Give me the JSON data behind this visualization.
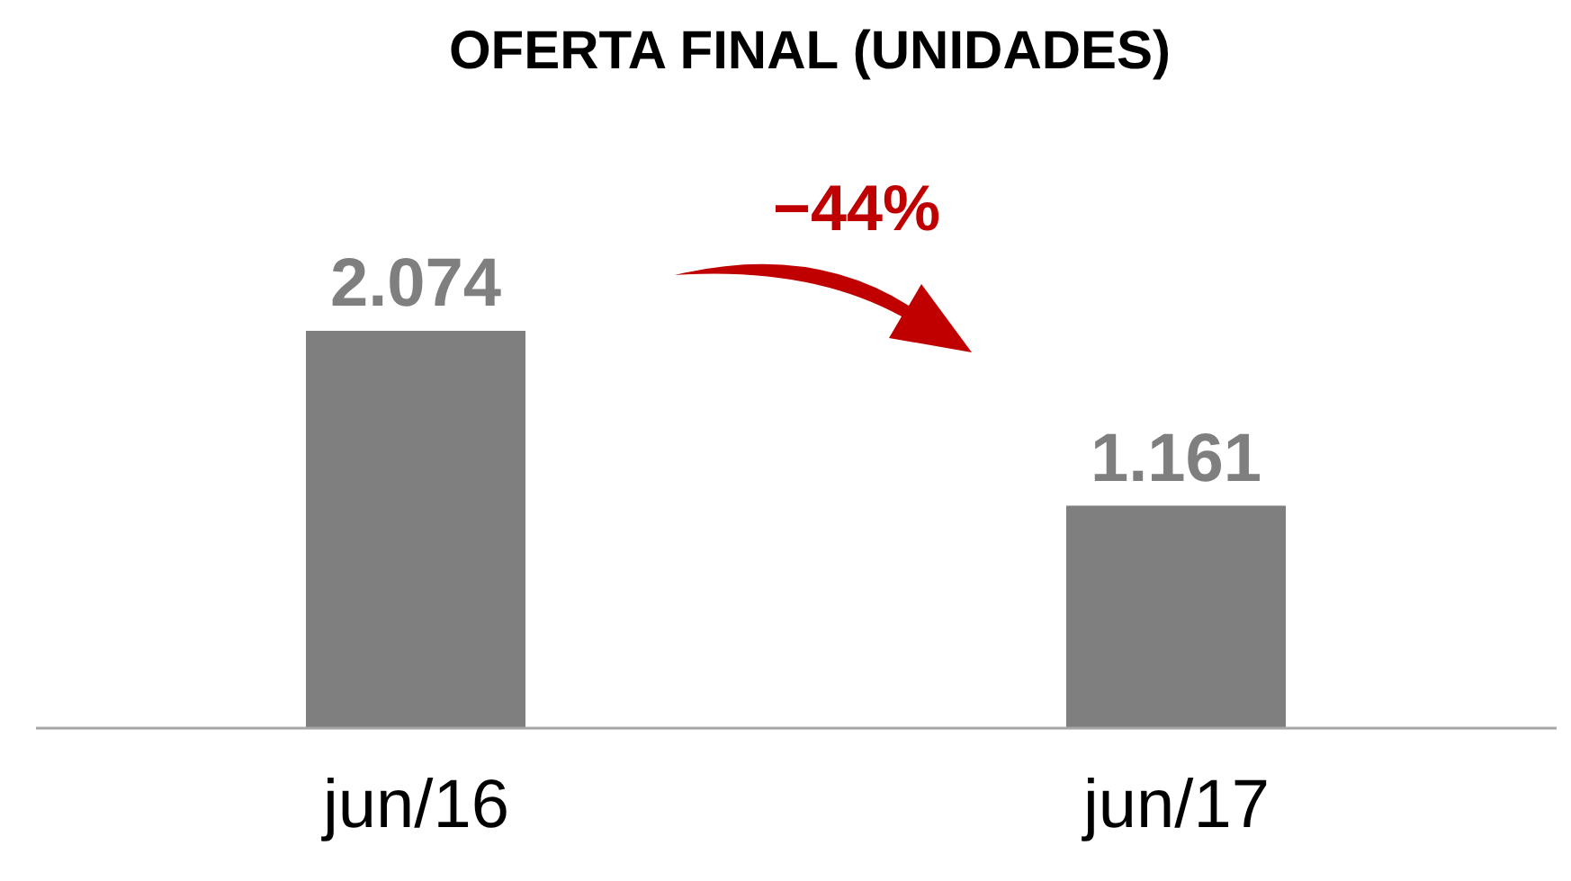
{
  "chart_data": {
    "type": "bar",
    "title": "OFERTA FINAL (UNIDADES)",
    "categories": [
      "jun/16",
      "jun/17"
    ],
    "values": [
      2074,
      1161
    ],
    "value_labels": [
      "2.074",
      "1.161"
    ],
    "color": "#7f7f7f",
    "annotations": [
      "−44%"
    ]
  }
}
